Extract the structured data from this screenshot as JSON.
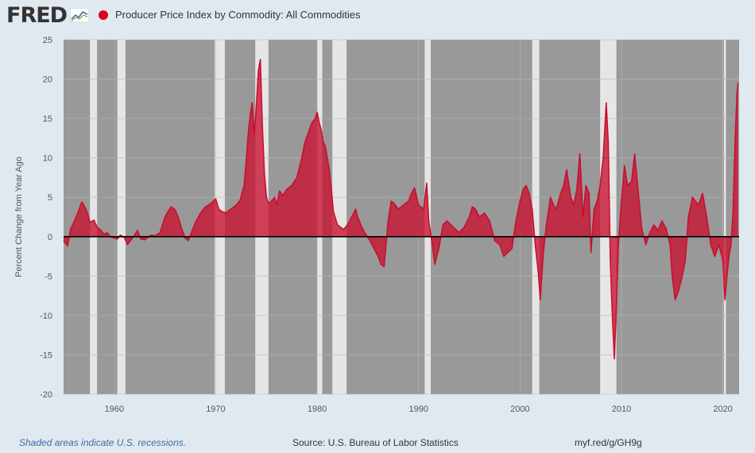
{
  "header": {
    "logo_text": "FRED",
    "series_title": "Producer Price Index by Commodity: All Commodities",
    "series_color": "#d9001b"
  },
  "footer": {
    "recession_note": "Shaded areas indicate U.S. recessions.",
    "source": "Source: U.S. Bureau of Labor Statistics",
    "link": "myf.red/g/GH9g"
  },
  "chart_data": {
    "type": "area",
    "title": "",
    "xlabel": "",
    "ylabel": "Percent Change from Year Ago",
    "xlim": [
      1955.0,
      2021.6
    ],
    "ylim": [
      -20,
      25
    ],
    "x_ticks": [
      1960,
      1970,
      1980,
      1990,
      2000,
      2010,
      2020
    ],
    "y_ticks": [
      25,
      20,
      15,
      10,
      5,
      0,
      -5,
      -10,
      -15,
      -20
    ],
    "grid": true,
    "plot_background": "#999999",
    "recession_color": "#e6e6e6",
    "fill_color": "#c8102e",
    "line_color": "#c8102e",
    "recessions": [
      [
        1957.6,
        1958.3
      ],
      [
        1960.3,
        1961.1
      ],
      [
        1969.9,
        1970.9
      ],
      [
        1973.9,
        1975.2
      ],
      [
        1980.0,
        1980.5
      ],
      [
        1981.5,
        1982.9
      ],
      [
        1990.6,
        1991.2
      ],
      [
        2001.2,
        2001.9
      ],
      [
        2007.9,
        2009.5
      ],
      [
        2020.1,
        2020.3
      ]
    ],
    "series": [
      {
        "x": [
          1955.0,
          1955.4,
          1955.7,
          1956.0,
          1956.4,
          1956.8,
          1957.0,
          1957.3,
          1957.6,
          1958.0,
          1958.3,
          1958.6,
          1959.0,
          1959.3,
          1959.6,
          1960.0,
          1960.3,
          1960.6,
          1961.0,
          1961.3,
          1961.6,
          1962.0,
          1962.3,
          1962.6,
          1963.0,
          1963.3,
          1963.6,
          1964.0,
          1964.5,
          1965.0,
          1965.3,
          1965.6,
          1966.0,
          1966.3,
          1966.6,
          1967.0,
          1967.3,
          1967.6,
          1968.0,
          1968.5,
          1969.0,
          1969.5,
          1970.0,
          1970.3,
          1970.6,
          1971.0,
          1971.5,
          1972.0,
          1972.4,
          1972.8,
          1973.0,
          1973.2,
          1973.4,
          1973.6,
          1973.8,
          1974.0,
          1974.2,
          1974.4,
          1974.6,
          1974.8,
          1975.0,
          1975.2,
          1975.5,
          1975.8,
          1976.0,
          1976.3,
          1976.6,
          1977.0,
          1977.5,
          1978.0,
          1978.4,
          1978.8,
          1979.2,
          1979.5,
          1979.8,
          1980.0,
          1980.2,
          1980.4,
          1980.6,
          1980.8,
          1981.0,
          1981.2,
          1981.4,
          1981.6,
          1982.0,
          1982.3,
          1982.6,
          1983.0,
          1983.4,
          1983.8,
          1984.0,
          1984.4,
          1984.8,
          1985.2,
          1985.6,
          1986.0,
          1986.3,
          1986.6,
          1987.0,
          1987.3,
          1987.6,
          1988.0,
          1988.5,
          1989.0,
          1989.3,
          1989.6,
          1990.0,
          1990.5,
          1990.8,
          1991.0,
          1991.3,
          1991.6,
          1992.0,
          1992.4,
          1992.8,
          1993.2,
          1993.6,
          1994.0,
          1994.5,
          1995.0,
          1995.3,
          1995.6,
          1996.0,
          1996.5,
          1997.0,
          1997.5,
          1998.0,
          1998.4,
          1998.8,
          1999.2,
          1999.6,
          2000.0,
          2000.3,
          2000.6,
          2000.9,
          2001.2,
          2001.5,
          2001.8,
          2002.0,
          2002.3,
          2002.6,
          2003.0,
          2003.3,
          2003.6,
          2004.0,
          2004.3,
          2004.6,
          2005.0,
          2005.3,
          2005.6,
          2005.9,
          2006.2,
          2006.5,
          2006.8,
          2007.0,
          2007.3,
          2007.6,
          2007.9,
          2008.2,
          2008.5,
          2008.7,
          2008.9,
          2009.1,
          2009.3,
          2009.5,
          2009.7,
          2010.0,
          2010.3,
          2010.6,
          2011.0,
          2011.3,
          2011.6,
          2012.0,
          2012.4,
          2012.8,
          2013.2,
          2013.6,
          2014.0,
          2014.4,
          2014.8,
          2015.0,
          2015.3,
          2015.6,
          2016.0,
          2016.3,
          2016.6,
          2017.0,
          2017.3,
          2017.6,
          2018.0,
          2018.4,
          2018.8,
          2019.2,
          2019.6,
          2020.0,
          2020.2,
          2020.4,
          2020.6,
          2020.8,
          2021.0,
          2021.2,
          2021.4,
          2021.5
        ],
        "y": [
          -0.5,
          -1.2,
          1.0,
          1.8,
          3.0,
          4.4,
          4.0,
          3.2,
          1.8,
          2.1,
          1.2,
          0.9,
          0.3,
          0.5,
          0.0,
          -0.2,
          -0.3,
          0.2,
          -0.1,
          -1.0,
          -0.5,
          0.2,
          0.8,
          -0.3,
          -0.4,
          -0.1,
          0.2,
          0.1,
          0.5,
          2.5,
          3.2,
          3.8,
          3.4,
          2.5,
          1.2,
          -0.2,
          -0.5,
          0.5,
          1.8,
          3.0,
          3.8,
          4.2,
          4.8,
          3.5,
          3.2,
          3.0,
          3.5,
          4.0,
          4.6,
          6.5,
          9.5,
          13.0,
          15.5,
          17.0,
          13.0,
          16.5,
          21.0,
          22.5,
          14.0,
          8.0,
          5.0,
          4.2,
          4.5,
          5.0,
          4.0,
          5.8,
          5.2,
          6.0,
          6.5,
          7.5,
          9.5,
          12.0,
          13.5,
          14.5,
          15.0,
          15.8,
          14.5,
          13.5,
          12.0,
          11.5,
          10.0,
          8.5,
          6.0,
          3.2,
          1.5,
          1.2,
          0.9,
          1.5,
          2.5,
          3.5,
          2.5,
          1.2,
          0.3,
          -0.5,
          -1.5,
          -2.5,
          -3.5,
          -3.8,
          2.0,
          4.5,
          4.2,
          3.5,
          4.0,
          4.5,
          5.5,
          6.2,
          4.0,
          3.5,
          6.8,
          2.0,
          -0.5,
          -3.5,
          -1.5,
          1.5,
          2.0,
          1.5,
          1.0,
          0.5,
          1.2,
          2.5,
          3.8,
          3.5,
          2.5,
          3.0,
          2.0,
          -0.5,
          -1.0,
          -2.5,
          -2.0,
          -1.5,
          2.0,
          4.5,
          6.0,
          6.5,
          5.5,
          3.5,
          -1.0,
          -4.5,
          -8.0,
          -2.0,
          1.5,
          5.0,
          4.0,
          3.5,
          5.5,
          6.5,
          8.5,
          5.0,
          4.0,
          6.0,
          10.5,
          2.5,
          6.5,
          5.5,
          -2.0,
          3.5,
          4.5,
          6.5,
          10.0,
          17.0,
          12.0,
          -3.0,
          -10.0,
          -15.5,
          -9.0,
          -1.0,
          4.5,
          9.0,
          6.5,
          7.0,
          10.5,
          6.5,
          1.0,
          -1.0,
          0.5,
          1.5,
          0.8,
          2.0,
          1.0,
          -1.0,
          -5.0,
          -8.0,
          -7.0,
          -5.0,
          -3.0,
          2.5,
          5.0,
          4.5,
          4.0,
          5.5,
          2.5,
          -1.0,
          -2.5,
          -1.0,
          -3.0,
          -8.0,
          -5.0,
          -2.5,
          -1.0,
          3.0,
          12.0,
          18.5,
          19.5
        ]
      }
    ]
  }
}
